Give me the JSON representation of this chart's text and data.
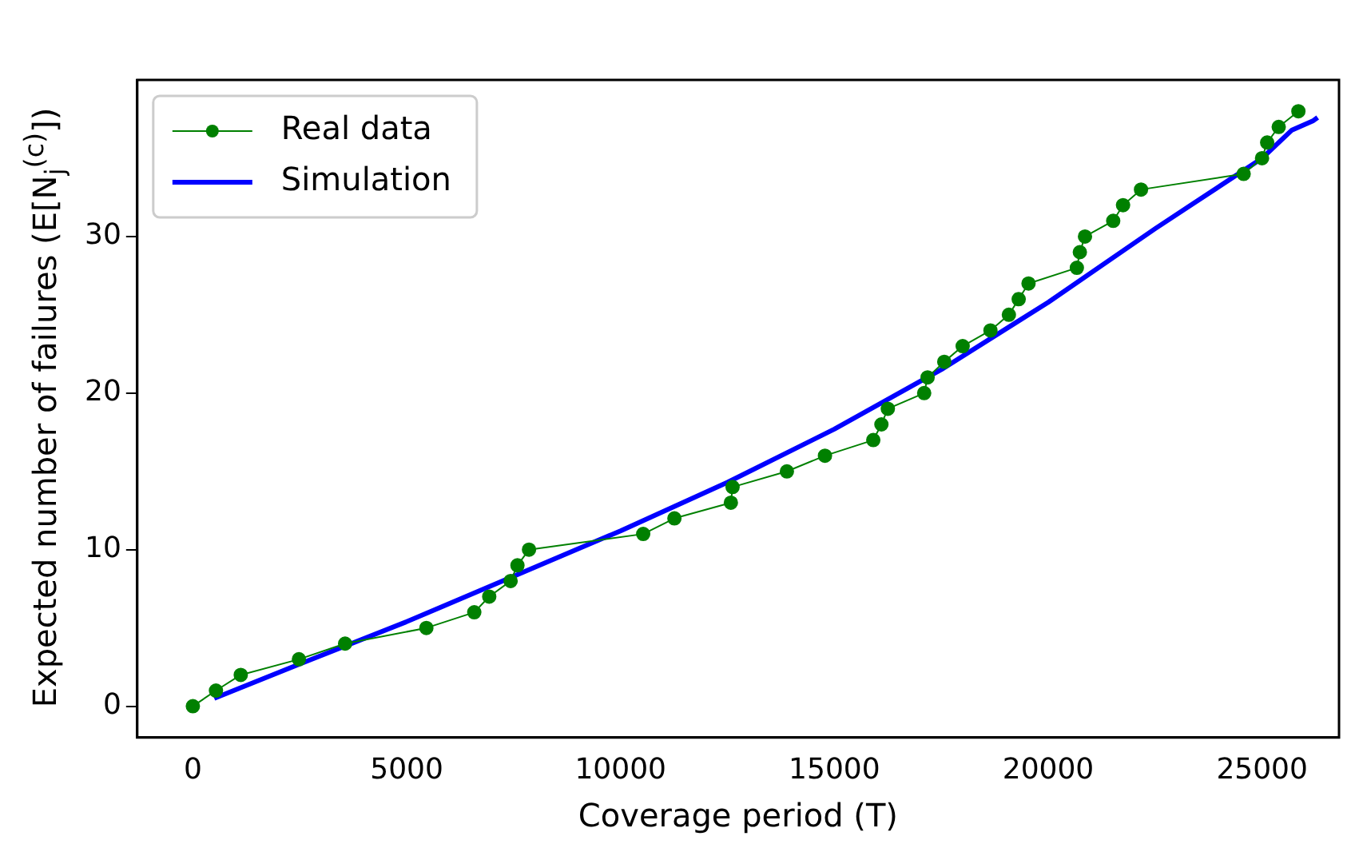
{
  "chart_data": {
    "type": "line",
    "xlabel": "Coverage period (T)",
    "ylabel": "Expected number of failures (E[N$_{j}$$^{(c)}$])",
    "xlim": [
      -1300,
      26800
    ],
    "xticks": [
      0,
      5000,
      10000,
      15000,
      20000,
      25000
    ],
    "ylim": [
      -2,
      40
    ],
    "yticks": [
      0,
      10,
      20,
      30
    ],
    "grid": false,
    "legend": "top left",
    "series": [
      {
        "name": "Real data",
        "color": "#008000",
        "marker": "circle",
        "x": [
          0,
          540,
          1120,
          2480,
          3560,
          5460,
          6580,
          6930,
          7430,
          7590,
          7860,
          10530,
          11260,
          12580,
          12620,
          13890,
          14780,
          15910,
          16100,
          16250,
          17100,
          17180,
          17570,
          18000,
          18650,
          19080,
          19310,
          19540,
          20670,
          20740,
          20860,
          21520,
          21750,
          22170,
          24570,
          25000,
          25120,
          25390,
          25850
        ],
        "values": [
          0,
          1,
          2,
          3,
          4,
          5,
          6,
          7,
          8,
          9,
          10,
          11,
          12,
          13,
          14,
          15,
          16,
          17,
          18,
          19,
          20,
          21,
          22,
          23,
          24,
          25,
          26,
          27,
          28,
          29,
          30,
          31,
          32,
          33,
          34,
          35,
          36,
          37,
          38
        ]
      },
      {
        "name": "Simulation",
        "color": "#0000ff",
        "marker": "none",
        "x": [
          500,
          2500,
          5000,
          7500,
          10000,
          12500,
          15000,
          17500,
          20000,
          22500,
          25000,
          25700,
          26200,
          26300
        ],
        "values": [
          0.5,
          2.7,
          5.4,
          8.3,
          11.2,
          14.3,
          17.7,
          21.5,
          25.8,
          30.5,
          35,
          36.8,
          37.4,
          37.6
        ]
      }
    ]
  }
}
